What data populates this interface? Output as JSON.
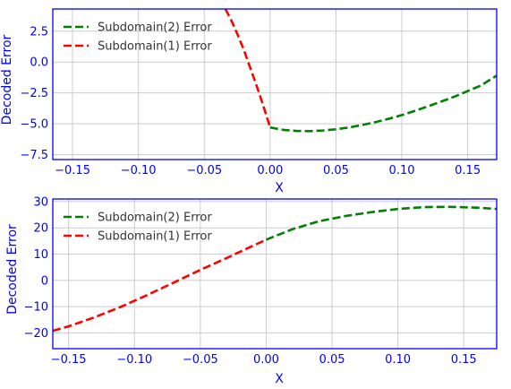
{
  "chart_data": [
    {
      "type": "line",
      "xlabel": "X",
      "ylabel": "Decoded Error",
      "xlim": [
        -0.165,
        0.172
      ],
      "ylim": [
        -7.9,
        4.3
      ],
      "xticks": [
        "−0.15",
        "−0.10",
        "−0.05",
        "0.00",
        "0.05",
        "0.10",
        "0.15"
      ],
      "yticks": [
        "−7.5",
        "−5.0",
        "−2.5",
        "0.0",
        "2.5"
      ],
      "xtick_values": [
        -0.15,
        -0.1,
        -0.05,
        0.0,
        0.05,
        0.1,
        0.15
      ],
      "ytick_values": [
        -7.5,
        -5.0,
        -2.5,
        0.0,
        2.5
      ],
      "grid": true,
      "legend_position": "top-left",
      "series": [
        {
          "name": "Subdomain(2) Error",
          "color": "#008000",
          "x": [
            0.0,
            0.01,
            0.02,
            0.03,
            0.04,
            0.05,
            0.06,
            0.07,
            0.08,
            0.09,
            0.1,
            0.11,
            0.12,
            0.13,
            0.14,
            0.15,
            0.16,
            0.172
          ],
          "y": [
            -5.3,
            -5.5,
            -5.58,
            -5.6,
            -5.55,
            -5.45,
            -5.3,
            -5.1,
            -4.87,
            -4.6,
            -4.3,
            -3.95,
            -3.58,
            -3.2,
            -2.8,
            -2.35,
            -1.9,
            -1.1
          ]
        },
        {
          "name": "Subdomain(1) Error",
          "color": "#ff0000",
          "x": [
            -0.034,
            -0.03,
            -0.025,
            -0.02,
            -0.015,
            -0.01,
            -0.005,
            0.0
          ],
          "y": [
            4.3,
            3.5,
            2.3,
            1.0,
            -0.5,
            -2.0,
            -3.6,
            -5.3
          ]
        }
      ]
    },
    {
      "type": "line",
      "xlabel": "X",
      "ylabel": "Decoded Error",
      "xlim": [
        -0.162,
        0.175
      ],
      "ylim": [
        -26,
        31
      ],
      "xticks": [
        "−0.15",
        "−0.10",
        "−0.05",
        "0.00",
        "0.05",
        "0.10",
        "0.15"
      ],
      "yticks": [
        "−20",
        "−10",
        "0",
        "10",
        "20",
        "30"
      ],
      "xtick_values": [
        -0.15,
        -0.1,
        -0.05,
        0.0,
        0.05,
        0.1,
        0.15
      ],
      "ytick_values": [
        -20,
        -10,
        0,
        10,
        20,
        30
      ],
      "grid": true,
      "legend_position": "top-left",
      "series": [
        {
          "name": "Subdomain(2) Error",
          "color": "#008000",
          "x": [
            0.0,
            0.02,
            0.04,
            0.06,
            0.08,
            0.1,
            0.12,
            0.14,
            0.16,
            0.175
          ],
          "y": [
            15.5,
            19.5,
            22.5,
            24.5,
            26.0,
            27.2,
            27.9,
            28.0,
            27.7,
            27.2
          ]
        },
        {
          "name": "Subdomain(1) Error",
          "color": "#ff0000",
          "x": [
            -0.162,
            -0.15,
            -0.13,
            -0.11,
            -0.09,
            -0.07,
            -0.05,
            -0.03,
            -0.01,
            0.0
          ],
          "y": [
            -19.2,
            -17.5,
            -14.0,
            -10.0,
            -5.5,
            -0.8,
            4.0,
            8.5,
            13.2,
            15.5
          ]
        }
      ]
    }
  ]
}
